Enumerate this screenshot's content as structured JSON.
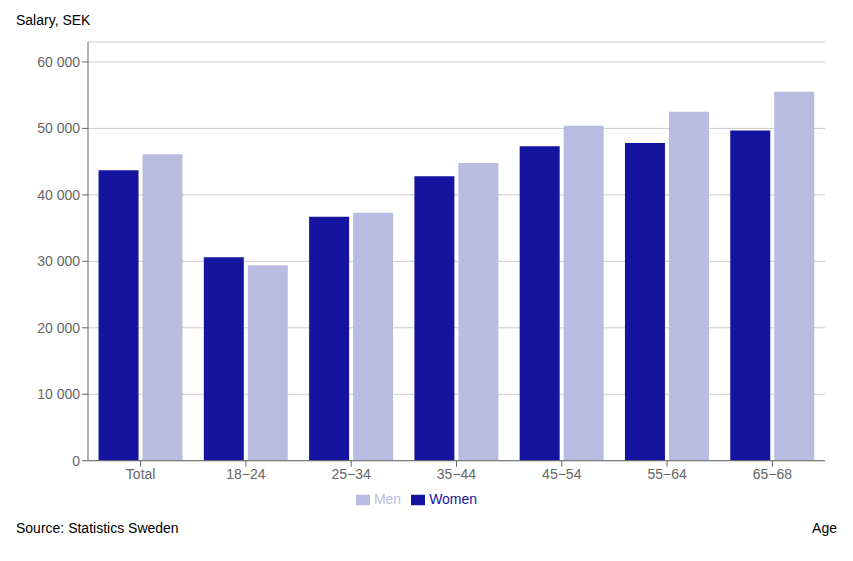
{
  "chart_data": {
    "type": "bar",
    "categories": [
      "Total",
      "18−24",
      "25−34",
      "35−44",
      "45−54",
      "55−64",
      "65−68"
    ],
    "series": [
      {
        "name": "Women",
        "color": "#1414a0",
        "values": [
          43700,
          30600,
          36700,
          42800,
          47300,
          47800,
          49700
        ]
      },
      {
        "name": "Men",
        "color": "#b8bce0",
        "values": [
          46100,
          29400,
          37300,
          44800,
          50400,
          52500,
          55500
        ]
      }
    ],
    "y_label": "Salary, SEK",
    "x_label": "Age",
    "annotations": [
      "Source: Statistics Sweden"
    ],
    "ylim": [
      0,
      63000
    ],
    "yticks": [
      0,
      {
        "value": 10000,
        "label": "10 000"
      },
      {
        "value": 20000,
        "label": "20 000"
      },
      {
        "value": 30000,
        "label": "30 000"
      },
      {
        "value": 40000,
        "label": "40 000"
      },
      {
        "value": 50000,
        "label": "50 000"
      },
      {
        "value": 60000,
        "label": "60 000"
      }
    ],
    "grid": true,
    "legend": "bottom"
  }
}
